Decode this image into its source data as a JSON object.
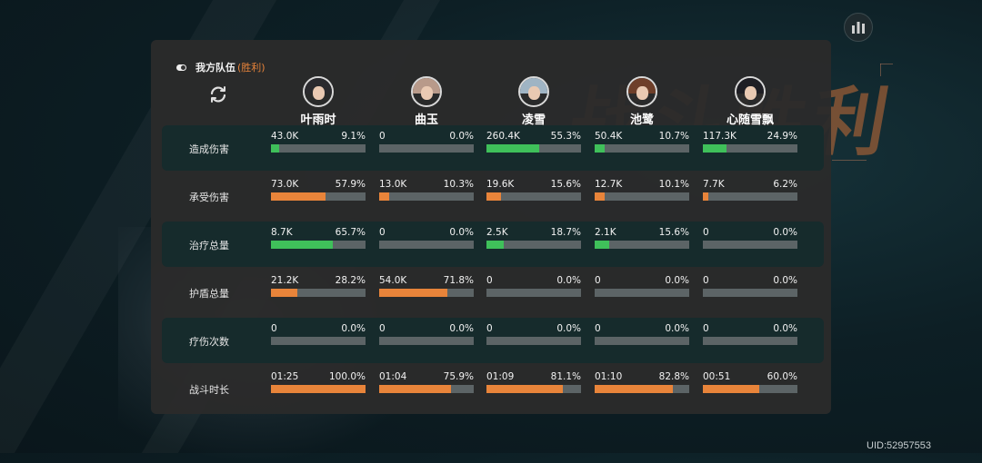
{
  "header": {
    "team_label": "我方队伍",
    "result_label": "(胜利)",
    "background_title": "战斗胜利"
  },
  "footer": {
    "uid": "UID:52957553"
  },
  "colors": {
    "green": "#3fc05a",
    "orange": "#e8843a",
    "track": "#5c6466",
    "result": "#e6833a"
  },
  "icons": {
    "stats": "bar-chart-icon",
    "refresh": "refresh-icon",
    "toggle": "toggle-icon"
  },
  "heroes": [
    {
      "name": "叶雨时",
      "avatar_color": "#2a2a2e"
    },
    {
      "name": "曲玉",
      "avatar_color": "#b89a8a"
    },
    {
      "name": "凌雪",
      "avatar_color": "#9fb4c4"
    },
    {
      "name": "池鹭",
      "avatar_color": "#6e3f2a"
    },
    {
      "name": "心随雪飘",
      "avatar_color": "#1e1e24"
    }
  ],
  "stats": [
    {
      "label": "造成伤害",
      "color": "green",
      "cells": [
        {
          "value": "43.0K",
          "percent": "9.1%",
          "fill": 0.091
        },
        {
          "value": "0",
          "percent": "0.0%",
          "fill": 0
        },
        {
          "value": "260.4K",
          "percent": "55.3%",
          "fill": 0.553
        },
        {
          "value": "50.4K",
          "percent": "10.7%",
          "fill": 0.107
        },
        {
          "value": "117.3K",
          "percent": "24.9%",
          "fill": 0.249
        }
      ]
    },
    {
      "label": "承受伤害",
      "color": "orange",
      "cells": [
        {
          "value": "73.0K",
          "percent": "57.9%",
          "fill": 0.579
        },
        {
          "value": "13.0K",
          "percent": "10.3%",
          "fill": 0.103
        },
        {
          "value": "19.6K",
          "percent": "15.6%",
          "fill": 0.156
        },
        {
          "value": "12.7K",
          "percent": "10.1%",
          "fill": 0.101
        },
        {
          "value": "7.7K",
          "percent": "6.2%",
          "fill": 0.062
        }
      ]
    },
    {
      "label": "治疗总量",
      "color": "green",
      "cells": [
        {
          "value": "8.7K",
          "percent": "65.7%",
          "fill": 0.657
        },
        {
          "value": "0",
          "percent": "0.0%",
          "fill": 0
        },
        {
          "value": "2.5K",
          "percent": "18.7%",
          "fill": 0.187
        },
        {
          "value": "2.1K",
          "percent": "15.6%",
          "fill": 0.156
        },
        {
          "value": "0",
          "percent": "0.0%",
          "fill": 0
        }
      ]
    },
    {
      "label": "护盾总量",
      "color": "orange",
      "cells": [
        {
          "value": "21.2K",
          "percent": "28.2%",
          "fill": 0.282
        },
        {
          "value": "54.0K",
          "percent": "71.8%",
          "fill": 0.718
        },
        {
          "value": "0",
          "percent": "0.0%",
          "fill": 0
        },
        {
          "value": "0",
          "percent": "0.0%",
          "fill": 0
        },
        {
          "value": "0",
          "percent": "0.0%",
          "fill": 0
        }
      ]
    },
    {
      "label": "疗伤次数",
      "color": "green",
      "cells": [
        {
          "value": "0",
          "percent": "0.0%",
          "fill": 0
        },
        {
          "value": "0",
          "percent": "0.0%",
          "fill": 0
        },
        {
          "value": "0",
          "percent": "0.0%",
          "fill": 0
        },
        {
          "value": "0",
          "percent": "0.0%",
          "fill": 0
        },
        {
          "value": "0",
          "percent": "0.0%",
          "fill": 0
        }
      ]
    },
    {
      "label": "战斗时长",
      "color": "orange",
      "cells": [
        {
          "value": "01:25",
          "percent": "100.0%",
          "fill": 1.0
        },
        {
          "value": "01:04",
          "percent": "75.9%",
          "fill": 0.759
        },
        {
          "value": "01:09",
          "percent": "81.1%",
          "fill": 0.811
        },
        {
          "value": "01:10",
          "percent": "82.8%",
          "fill": 0.828
        },
        {
          "value": "00:51",
          "percent": "60.0%",
          "fill": 0.6
        }
      ]
    }
  ]
}
